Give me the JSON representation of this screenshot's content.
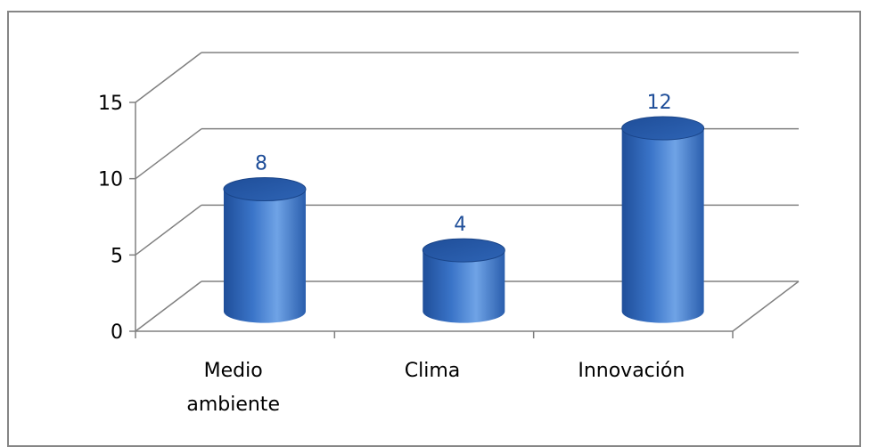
{
  "chart_data": {
    "type": "bar",
    "style": "3d-cylinder",
    "categories": [
      "Medio ambiente",
      "Clima",
      "Innovación"
    ],
    "category_lines": [
      [
        "Medio",
        "ambiente"
      ],
      [
        "Clima"
      ],
      [
        "Innovación"
      ]
    ],
    "values": [
      8,
      4,
      12
    ],
    "data_labels": [
      "8",
      "4",
      "12"
    ],
    "ylim": [
      0,
      15
    ],
    "yticks": [
      0,
      5,
      10,
      15
    ],
    "ytick_labels": [
      "0",
      "5",
      "10",
      "15"
    ],
    "grid": true,
    "legend": "none",
    "colors": {
      "bar_dark": "#1F4E99",
      "bar_mid": "#3A74C8",
      "bar_light": "#6FA3E6",
      "bar_top": "#2A5EAD",
      "data_label": "#1F4E99",
      "gridline": "#808080"
    }
  }
}
